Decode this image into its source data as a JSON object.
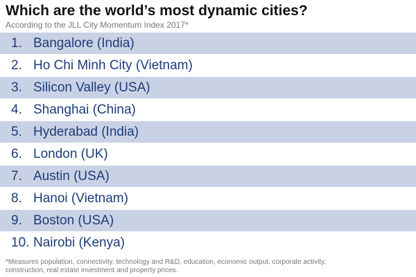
{
  "header": {
    "title": "Which are the world’s most dynamic cities?",
    "subtitle": "According to the JLL City Momentum Index 2017*"
  },
  "list": {
    "rows": [
      {
        "rank": "1.",
        "name": "Bangalore (India)"
      },
      {
        "rank": "2.",
        "name": "Ho Chi Minh City (Vietnam)"
      },
      {
        "rank": "3.",
        "name": "Silicon Valley (USA)"
      },
      {
        "rank": "4.",
        "name": "Shanghai (China)"
      },
      {
        "rank": "5.",
        "name": "Hyderabad (India)"
      },
      {
        "rank": "6.",
        "name": "London (UK)"
      },
      {
        "rank": "7.",
        "name": "Austin (USA)"
      },
      {
        "rank": "8.",
        "name": "Hanoi (Vietnam)"
      },
      {
        "rank": "9.",
        "name": "Boston (USA)"
      },
      {
        "rank": "10.",
        "name": "Nairobi (Kenya)"
      }
    ]
  },
  "footnote": {
    "lines": [
      "*Measures population, connectivity, technology and R&D, education, economic output, corporate activity,",
      "construction, real estate investment and property prices."
    ]
  }
}
